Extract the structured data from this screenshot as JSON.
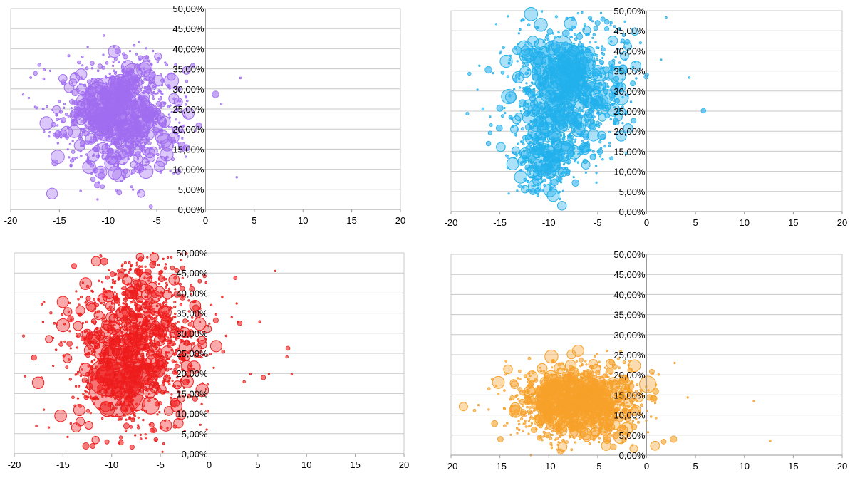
{
  "chart_data": [
    {
      "type": "bubble",
      "color": "#a06cf0",
      "xlim": [
        -20,
        20
      ],
      "ylim": [
        0,
        0.5
      ],
      "x_ticks": [
        "-20",
        "-15",
        "-10",
        "-5",
        "0",
        "5",
        "10",
        "15",
        "20"
      ],
      "y_ticks": [
        "0,00%",
        "5,00%",
        "10,00%",
        "15,00%",
        "20,00%",
        "25,00%",
        "30,00%",
        "35,00%",
        "40,00%",
        "45,00%",
        "50,00%"
      ],
      "clusters": [
        {
          "cx": -8.5,
          "cy": 0.23,
          "sx": 3.0,
          "sy": 0.07,
          "n": 1100,
          "rmax": 9
        },
        {
          "cx": -10.0,
          "cy": 0.27,
          "sx": 1.2,
          "sy": 0.04,
          "n": 60,
          "rmax": 20
        }
      ],
      "big_bubbles": [
        {
          "x": -9.8,
          "y": 0.265,
          "size": 36
        },
        {
          "x": -8.6,
          "y": 0.25,
          "size": 24
        },
        {
          "x": -11.0,
          "y": 0.285,
          "size": 18
        },
        {
          "x": -6.5,
          "y": 0.22,
          "size": 16
        },
        {
          "x": -3.5,
          "y": 0.32,
          "size": 10
        },
        {
          "x": -7.5,
          "y": 0.34,
          "size": 13
        }
      ]
    },
    {
      "type": "bubble",
      "color": "#22b1ec",
      "xlim": [
        -20,
        20
      ],
      "ylim": [
        0,
        0.5
      ],
      "x_ticks": [
        "-20",
        "-15",
        "-10",
        "-5",
        "0",
        "5",
        "10",
        "15",
        "20"
      ],
      "y_ticks": [
        "0,00%",
        "5,00%",
        "10,00%",
        "15,00%",
        "20,00%",
        "25,00%",
        "30,00%",
        "35,00%",
        "40,00%",
        "45,00%",
        "50,00%"
      ],
      "clusters": [
        {
          "cx": -8.0,
          "cy": 0.3,
          "sx": 3.0,
          "sy": 0.09,
          "n": 1000,
          "rmax": 9
        },
        {
          "cx": -10.5,
          "cy": 0.13,
          "sx": 1.5,
          "sy": 0.04,
          "n": 250,
          "rmax": 8
        },
        {
          "cx": -8.5,
          "cy": 0.34,
          "sx": 1.5,
          "sy": 0.05,
          "n": 60,
          "rmax": 20
        }
      ],
      "big_bubbles": [
        {
          "x": -8.8,
          "y": 0.35,
          "size": 40
        },
        {
          "x": -7.0,
          "y": 0.37,
          "size": 24
        },
        {
          "x": -10.5,
          "y": 0.13,
          "size": 22
        },
        {
          "x": -9.5,
          "y": 0.3,
          "size": 20
        },
        {
          "x": -5.5,
          "y": 0.28,
          "size": 14
        },
        {
          "x": -8.5,
          "y": 0.15,
          "size": 14
        },
        {
          "x": -3.0,
          "y": 0.34,
          "size": 12
        }
      ]
    },
    {
      "type": "bubble",
      "color": "#ee1c1c",
      "xlim": [
        -20,
        20
      ],
      "ylim": [
        0,
        0.5
      ],
      "x_ticks": [
        "-20",
        "-15",
        "-10",
        "-5",
        "0",
        "5",
        "10",
        "15",
        "20"
      ],
      "y_ticks": [
        "0,00%",
        "5,00%",
        "10,00%",
        "15,00%",
        "20,00%",
        "25,00%",
        "30,00%",
        "35,00%",
        "40,00%",
        "45,00%",
        "50,00%"
      ],
      "clusters": [
        {
          "cx": -7.5,
          "cy": 0.28,
          "sx": 3.5,
          "sy": 0.11,
          "n": 1300,
          "rmax": 8
        },
        {
          "cx": -9.5,
          "cy": 0.18,
          "sx": 1.8,
          "sy": 0.05,
          "n": 70,
          "rmax": 18
        }
      ],
      "big_bubbles": [
        {
          "x": -9.5,
          "y": 0.16,
          "size": 38
        },
        {
          "x": -10.5,
          "y": 0.19,
          "size": 26
        },
        {
          "x": -7.5,
          "y": 0.2,
          "size": 20
        },
        {
          "x": -5.5,
          "y": 0.22,
          "size": 16
        },
        {
          "x": -12.0,
          "y": 0.28,
          "size": 10
        },
        {
          "x": -6.0,
          "y": 0.12,
          "size": 12
        }
      ]
    },
    {
      "type": "bubble",
      "color": "#f7a12a",
      "xlim": [
        -20,
        20
      ],
      "ylim": [
        0,
        0.5
      ],
      "x_ticks": [
        "-20",
        "-15",
        "-10",
        "-5",
        "0",
        "5",
        "10",
        "15",
        "20"
      ],
      "y_ticks": [
        "0,00%",
        "5,00%",
        "10,00%",
        "15,00%",
        "20,00%",
        "25,00%",
        "30,00%",
        "35,00%",
        "40,00%",
        "45,00%",
        "50,00%"
      ],
      "clusters": [
        {
          "cx": -7.0,
          "cy": 0.13,
          "sx": 3.2,
          "sy": 0.045,
          "n": 1400,
          "rmax": 8
        },
        {
          "cx": -8.0,
          "cy": 0.16,
          "sx": 2.0,
          "sy": 0.035,
          "n": 60,
          "rmax": 16
        }
      ],
      "big_bubbles": [
        {
          "x": -8.0,
          "y": 0.15,
          "size": 26
        },
        {
          "x": -6.0,
          "y": 0.16,
          "size": 20
        },
        {
          "x": -9.5,
          "y": 0.17,
          "size": 18
        },
        {
          "x": -4.5,
          "y": 0.14,
          "size": 14
        },
        {
          "x": -7.0,
          "y": 0.26,
          "size": 8
        }
      ]
    }
  ]
}
